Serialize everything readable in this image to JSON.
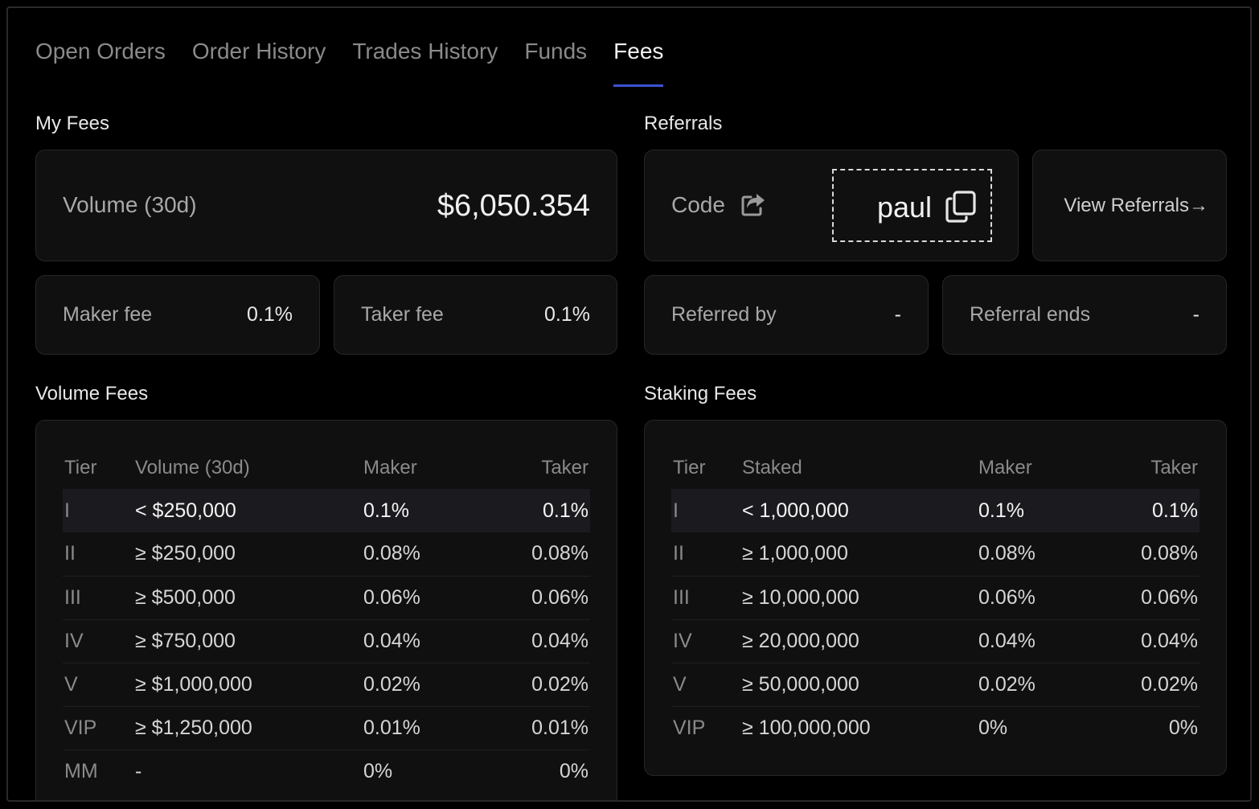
{
  "tabs": [
    {
      "label": "Open Orders"
    },
    {
      "label": "Order History"
    },
    {
      "label": "Trades History"
    },
    {
      "label": "Funds"
    },
    {
      "label": "Fees"
    }
  ],
  "my_fees": {
    "title": "My Fees",
    "volume_label": "Volume (30d)",
    "volume_value": "$6,050.354",
    "maker_label": "Maker fee",
    "maker_value": "0.1%",
    "taker_label": "Taker fee",
    "taker_value": "0.1%"
  },
  "referrals": {
    "title": "Referrals",
    "code_label": "Code",
    "code_value": "paul",
    "view_label": "View Referrals→",
    "referred_by_label": "Referred by",
    "referred_by_value": "-",
    "ends_label": "Referral ends",
    "ends_value": "-"
  },
  "volume_fees": {
    "title": "Volume Fees",
    "headers": [
      "Tier",
      "Volume (30d)",
      "Maker",
      "Taker"
    ],
    "rows": [
      [
        "I",
        "< $250,000",
        "0.1%",
        "0.1%"
      ],
      [
        "II",
        "≥ $250,000",
        "0.08%",
        "0.08%"
      ],
      [
        "III",
        "≥ $500,000",
        "0.06%",
        "0.06%"
      ],
      [
        "IV",
        "≥ $750,000",
        "0.04%",
        "0.04%"
      ],
      [
        "V",
        "≥ $1,000,000",
        "0.02%",
        "0.02%"
      ],
      [
        "VIP",
        "≥ $1,250,000",
        "0.01%",
        "0.01%"
      ],
      [
        "MM",
        "-",
        "0%",
        "0%"
      ]
    ]
  },
  "staking_fees": {
    "title": "Staking Fees",
    "headers": [
      "Tier",
      "Staked",
      "Maker",
      "Taker"
    ],
    "rows": [
      [
        "I",
        "< 1,000,000",
        "0.1%",
        "0.1%"
      ],
      [
        "II",
        "≥ 1,000,000",
        "0.08%",
        "0.08%"
      ],
      [
        "III",
        "≥ 10,000,000",
        "0.06%",
        "0.06%"
      ],
      [
        "IV",
        "≥ 20,000,000",
        "0.04%",
        "0.04%"
      ],
      [
        "V",
        "≥ 50,000,000",
        "0.02%",
        "0.02%"
      ],
      [
        "VIP",
        "≥ 100,000,000",
        "0%",
        "0%"
      ]
    ]
  },
  "colors": {
    "accent": "#3d52d5",
    "background": "#000000",
    "card": "#101010",
    "highlight_row": "#1b1b1f"
  },
  "icons": [
    "share-icon",
    "copy-icon"
  ]
}
